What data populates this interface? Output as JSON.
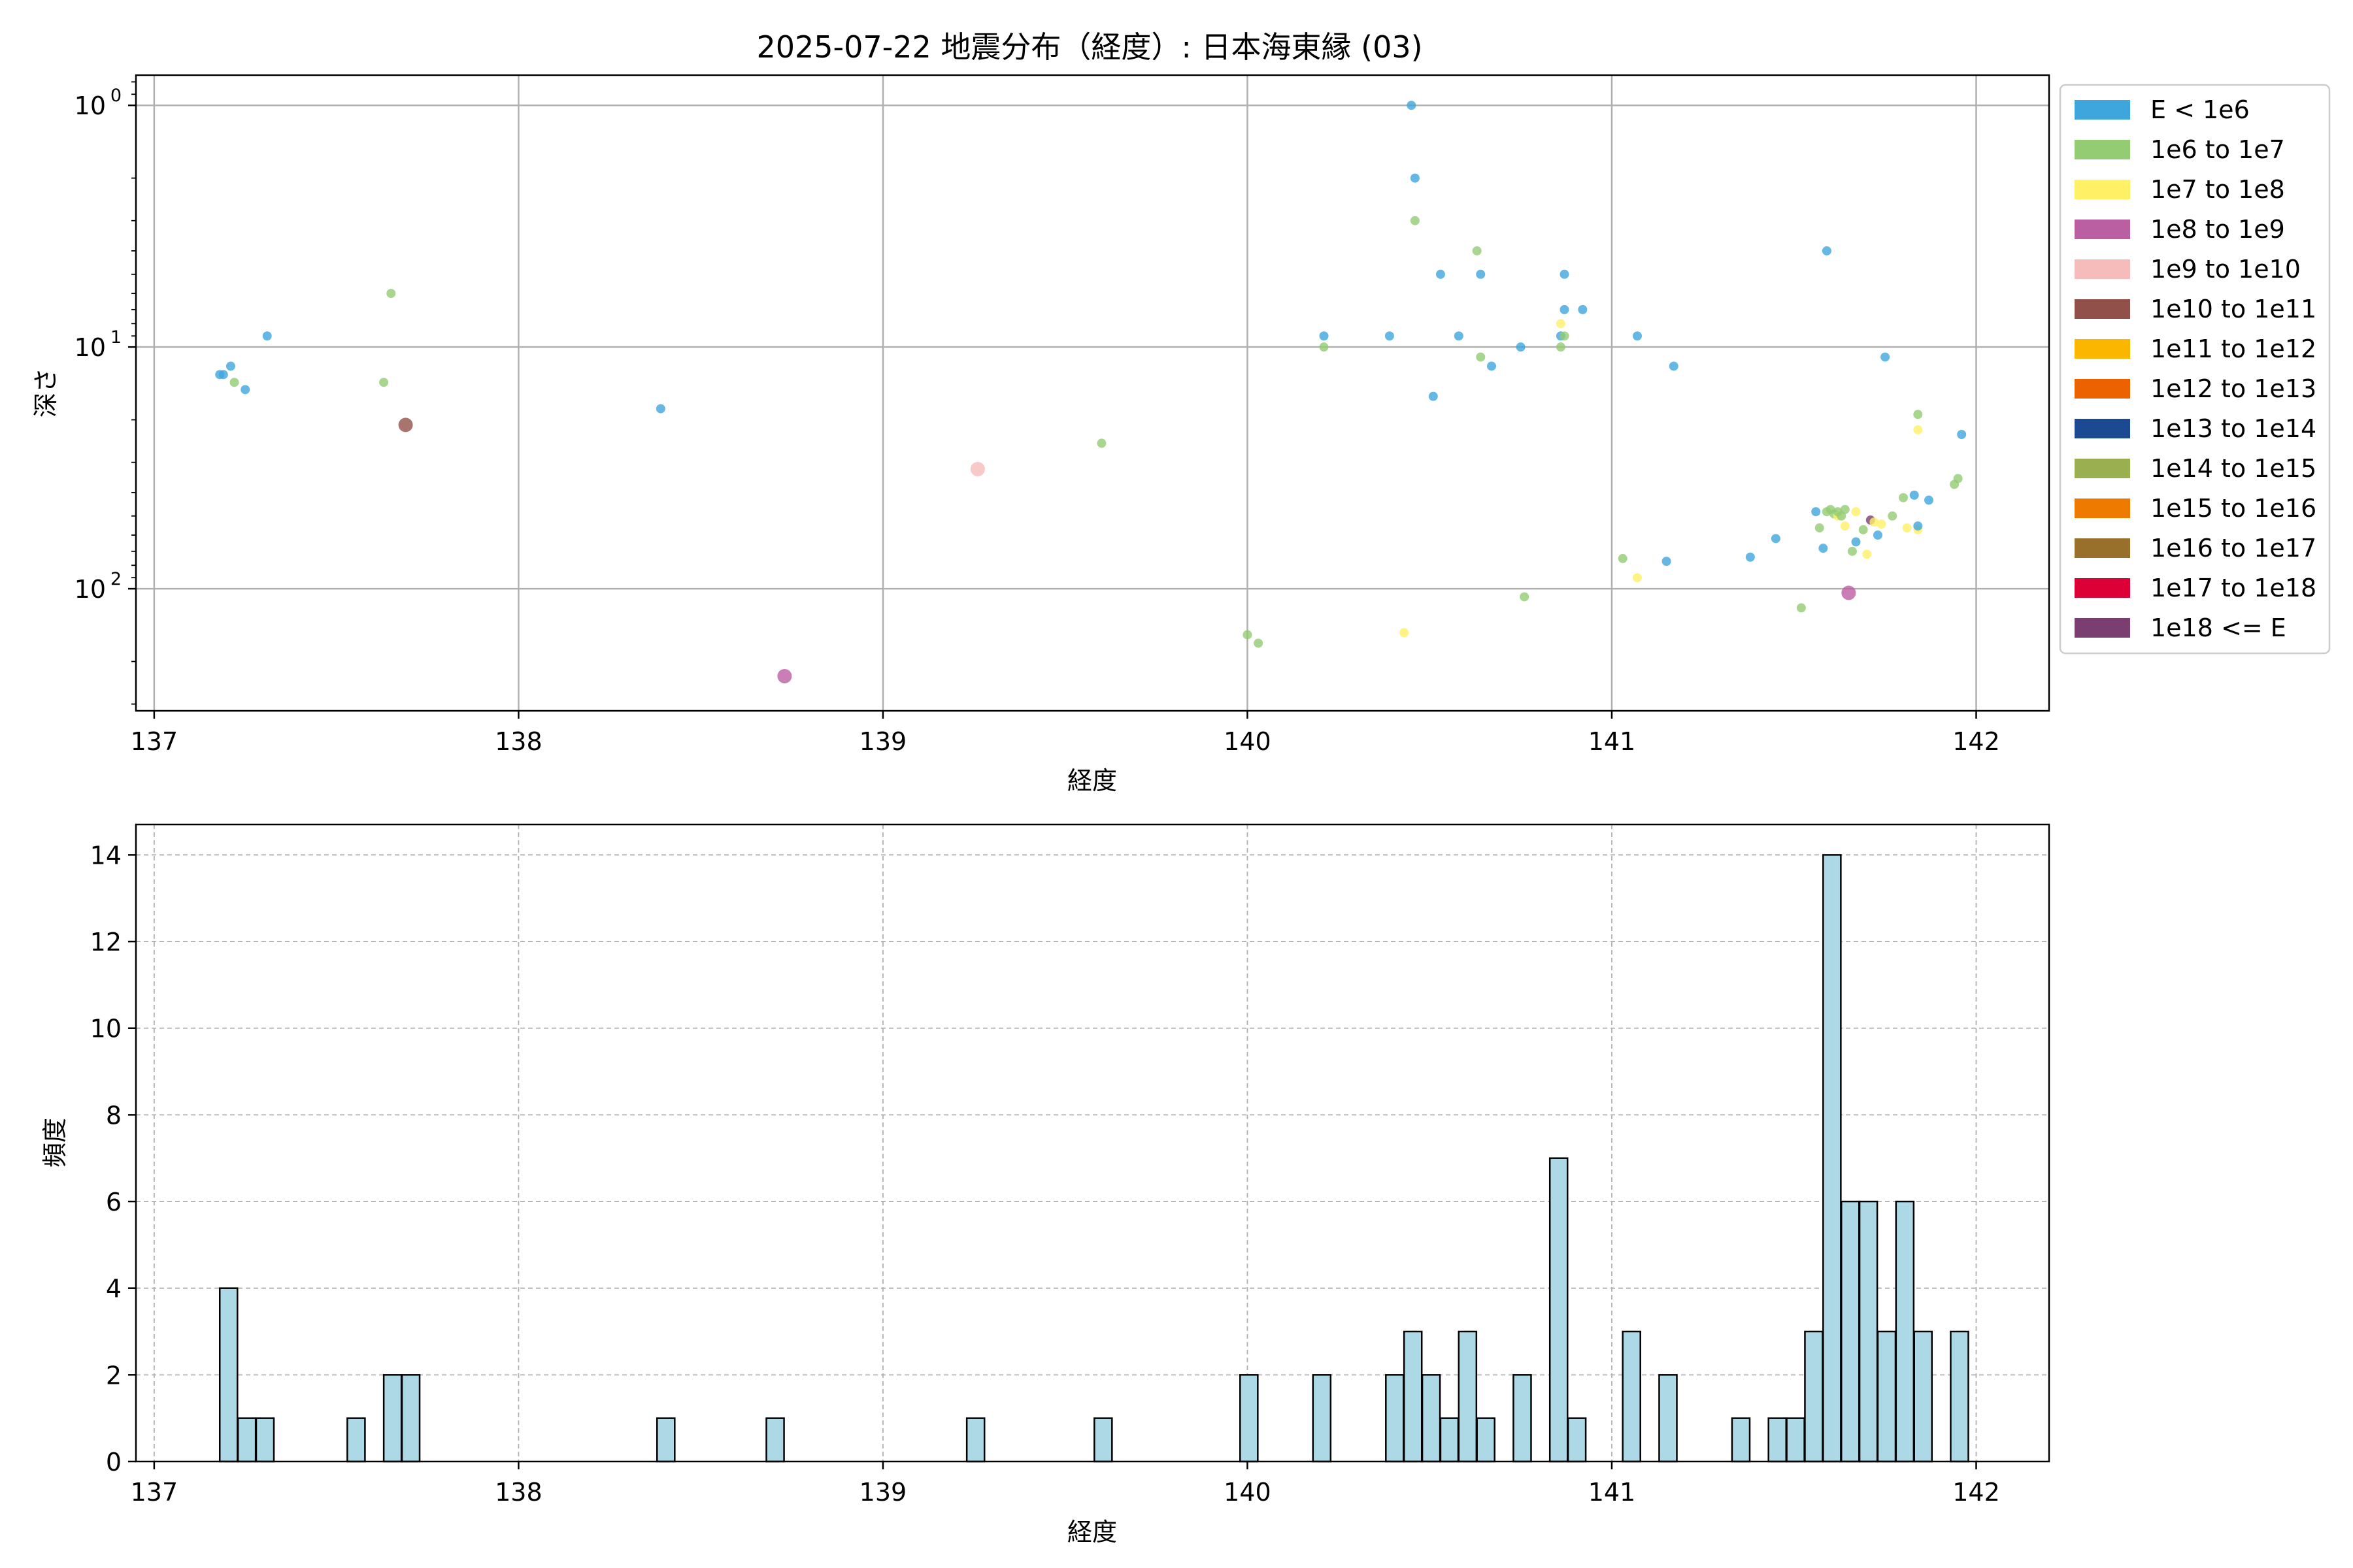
{
  "title": "2025-07-22 地震分布（経度）: 日本海東縁 (03)",
  "scatter": {
    "type": "scatter",
    "xlabel": "経度",
    "ylabel": "深さ",
    "xlim": [
      136.95,
      142.2
    ],
    "ylim": [
      320,
      0.75
    ],
    "yscale": "log",
    "inverted_y": true,
    "grid": true,
    "xticks": [
      137,
      138,
      139,
      140,
      141,
      142
    ],
    "xtick_labels": [
      "137",
      "138",
      "139",
      "140",
      "141",
      "142"
    ],
    "yticks": [
      1,
      10,
      100
    ],
    "ytick_exponents": [
      "0",
      "1",
      "2"
    ],
    "legend_position": "outside-right",
    "legend": [
      {
        "label": "E < 1e6",
        "color": "#3ea5dd"
      },
      {
        "label": "1e6 to 1e7",
        "color": "#93cc73"
      },
      {
        "label": "1e7 to 1e8",
        "color": "#fff066"
      },
      {
        "label": "1e8 to 1e9",
        "color": "#bb5fa3"
      },
      {
        "label": "1e9 to 1e10",
        "color": "#f6bcbb"
      },
      {
        "label": "1e10 to 1e11",
        "color": "#91514a"
      },
      {
        "label": "1e11 to 1e12",
        "color": "#fbb600"
      },
      {
        "label": "1e12 to 1e13",
        "color": "#ec6200"
      },
      {
        "label": "1e13 to 1e14",
        "color": "#1c4a92"
      },
      {
        "label": "1e14 to 1e15",
        "color": "#9ab050"
      },
      {
        "label": "1e15 to 1e16",
        "color": "#ee7b00"
      },
      {
        "label": "1e16 to 1e17",
        "color": "#98702c"
      },
      {
        "label": "1e17 to 1e18",
        "color": "#dc0037"
      },
      {
        "label": "1e18 <= E",
        "color": "#7a3f70"
      }
    ],
    "points": [
      {
        "x": 137.18,
        "y": 13,
        "c": 0
      },
      {
        "x": 137.19,
        "y": 13,
        "c": 0
      },
      {
        "x": 137.21,
        "y": 12,
        "c": 0
      },
      {
        "x": 137.22,
        "y": 14,
        "c": 1
      },
      {
        "x": 137.25,
        "y": 15,
        "c": 0
      },
      {
        "x": 137.31,
        "y": 9,
        "c": 0
      },
      {
        "x": 137.63,
        "y": 14,
        "c": 1
      },
      {
        "x": 137.65,
        "y": 6,
        "c": 1
      },
      {
        "x": 137.69,
        "y": 21,
        "c": 5
      },
      {
        "x": 138.39,
        "y": 18,
        "c": 0
      },
      {
        "x": 138.73,
        "y": 230,
        "c": 3
      },
      {
        "x": 139.26,
        "y": 32,
        "c": 4
      },
      {
        "x": 139.6,
        "y": 25,
        "c": 1
      },
      {
        "x": 140.0,
        "y": 155,
        "c": 1
      },
      {
        "x": 140.03,
        "y": 168,
        "c": 1
      },
      {
        "x": 140.21,
        "y": 9,
        "c": 0
      },
      {
        "x": 140.21,
        "y": 10,
        "c": 1
      },
      {
        "x": 140.39,
        "y": 9,
        "c": 0
      },
      {
        "x": 140.43,
        "y": 152,
        "c": 2
      },
      {
        "x": 140.45,
        "y": 1.0,
        "c": 0
      },
      {
        "x": 140.46,
        "y": 2.0,
        "c": 0
      },
      {
        "x": 140.46,
        "y": 3.0,
        "c": 1
      },
      {
        "x": 140.51,
        "y": 16,
        "c": 0
      },
      {
        "x": 140.53,
        "y": 5,
        "c": 0
      },
      {
        "x": 140.58,
        "y": 9,
        "c": 0
      },
      {
        "x": 140.63,
        "y": 4,
        "c": 1
      },
      {
        "x": 140.64,
        "y": 5,
        "c": 0
      },
      {
        "x": 140.64,
        "y": 11,
        "c": 1
      },
      {
        "x": 140.67,
        "y": 12,
        "c": 0
      },
      {
        "x": 140.75,
        "y": 10,
        "c": 0
      },
      {
        "x": 140.76,
        "y": 108,
        "c": 1
      },
      {
        "x": 140.86,
        "y": 8,
        "c": 2
      },
      {
        "x": 140.86,
        "y": 9,
        "c": 0
      },
      {
        "x": 140.86,
        "y": 10,
        "c": 1
      },
      {
        "x": 140.87,
        "y": 9,
        "c": 1
      },
      {
        "x": 140.87,
        "y": 7,
        "c": 0
      },
      {
        "x": 140.87,
        "y": 5,
        "c": 0
      },
      {
        "x": 140.92,
        "y": 7,
        "c": 0
      },
      {
        "x": 141.03,
        "y": 75,
        "c": 1
      },
      {
        "x": 141.07,
        "y": 90,
        "c": 2
      },
      {
        "x": 141.07,
        "y": 9,
        "c": 0
      },
      {
        "x": 141.15,
        "y": 77,
        "c": 0
      },
      {
        "x": 141.17,
        "y": 12,
        "c": 0
      },
      {
        "x": 141.38,
        "y": 74,
        "c": 0
      },
      {
        "x": 141.45,
        "y": 62,
        "c": 0
      },
      {
        "x": 141.52,
        "y": 120,
        "c": 1
      },
      {
        "x": 141.56,
        "y": 48,
        "c": 0
      },
      {
        "x": 141.57,
        "y": 56,
        "c": 1
      },
      {
        "x": 141.58,
        "y": 68,
        "c": 0
      },
      {
        "x": 141.59,
        "y": 4,
        "c": 0
      },
      {
        "x": 141.59,
        "y": 48,
        "c": 1
      },
      {
        "x": 141.6,
        "y": 47,
        "c": 1
      },
      {
        "x": 141.61,
        "y": 49,
        "c": 1
      },
      {
        "x": 141.62,
        "y": 50,
        "c": 2
      },
      {
        "x": 141.62,
        "y": 48,
        "c": 1
      },
      {
        "x": 141.63,
        "y": 50,
        "c": 1
      },
      {
        "x": 141.64,
        "y": 47,
        "c": 1
      },
      {
        "x": 141.64,
        "y": 55,
        "c": 2
      },
      {
        "x": 141.65,
        "y": 104,
        "c": 3
      },
      {
        "x": 141.66,
        "y": 70,
        "c": 1
      },
      {
        "x": 141.67,
        "y": 48,
        "c": 2
      },
      {
        "x": 141.67,
        "y": 64,
        "c": 0
      },
      {
        "x": 141.69,
        "y": 57,
        "c": 1
      },
      {
        "x": 141.7,
        "y": 72,
        "c": 2
      },
      {
        "x": 141.71,
        "y": 52,
        "c": 13
      },
      {
        "x": 141.72,
        "y": 53,
        "c": 2
      },
      {
        "x": 141.73,
        "y": 60,
        "c": 0
      },
      {
        "x": 141.74,
        "y": 54,
        "c": 2
      },
      {
        "x": 141.75,
        "y": 11,
        "c": 0
      },
      {
        "x": 141.77,
        "y": 50,
        "c": 1
      },
      {
        "x": 141.8,
        "y": 42,
        "c": 1
      },
      {
        "x": 141.81,
        "y": 56,
        "c": 2
      },
      {
        "x": 141.83,
        "y": 41,
        "c": 0
      },
      {
        "x": 141.84,
        "y": 19,
        "c": 1
      },
      {
        "x": 141.84,
        "y": 22,
        "c": 2
      },
      {
        "x": 141.84,
        "y": 57,
        "c": 2
      },
      {
        "x": 141.84,
        "y": 55,
        "c": 0
      },
      {
        "x": 141.87,
        "y": 43,
        "c": 0
      },
      {
        "x": 141.94,
        "y": 37,
        "c": 1
      },
      {
        "x": 141.95,
        "y": 35,
        "c": 1
      },
      {
        "x": 141.96,
        "y": 23,
        "c": 0
      }
    ]
  },
  "histogram": {
    "type": "bar",
    "xlabel": "経度",
    "ylabel": "頻度",
    "xlim": [
      136.95,
      142.2
    ],
    "ylim": [
      0,
      14.7
    ],
    "grid": true,
    "bar_color": "#add8e6",
    "edge_color": "#000000",
    "bin_width": 0.0485,
    "xticks": [
      137,
      138,
      139,
      140,
      141,
      142
    ],
    "xtick_labels": [
      "137",
      "138",
      "139",
      "140",
      "141",
      "142"
    ],
    "yticks": [
      0,
      2,
      4,
      6,
      8,
      10,
      12,
      14
    ],
    "ytick_labels": [
      "0",
      "2",
      "4",
      "6",
      "8",
      "10",
      "12",
      "14"
    ],
    "bins": [
      {
        "x": 137.18,
        "v": 4
      },
      {
        "x": 137.23,
        "v": 1
      },
      {
        "x": 137.28,
        "v": 1
      },
      {
        "x": 137.53,
        "v": 1
      },
      {
        "x": 137.63,
        "v": 2
      },
      {
        "x": 137.68,
        "v": 2
      },
      {
        "x": 138.38,
        "v": 1
      },
      {
        "x": 138.68,
        "v": 1
      },
      {
        "x": 139.23,
        "v": 1
      },
      {
        "x": 139.58,
        "v": 1
      },
      {
        "x": 139.98,
        "v": 2
      },
      {
        "x": 140.18,
        "v": 2
      },
      {
        "x": 140.38,
        "v": 2
      },
      {
        "x": 140.43,
        "v": 3
      },
      {
        "x": 140.48,
        "v": 2
      },
      {
        "x": 140.53,
        "v": 1
      },
      {
        "x": 140.58,
        "v": 3
      },
      {
        "x": 140.63,
        "v": 1
      },
      {
        "x": 140.73,
        "v": 2
      },
      {
        "x": 140.83,
        "v": 7
      },
      {
        "x": 140.88,
        "v": 1
      },
      {
        "x": 141.03,
        "v": 3
      },
      {
        "x": 141.13,
        "v": 2
      },
      {
        "x": 141.33,
        "v": 1
      },
      {
        "x": 141.43,
        "v": 1
      },
      {
        "x": 141.48,
        "v": 1
      },
      {
        "x": 141.53,
        "v": 3
      },
      {
        "x": 141.58,
        "v": 14
      },
      {
        "x": 141.63,
        "v": 6
      },
      {
        "x": 141.68,
        "v": 6
      },
      {
        "x": 141.73,
        "v": 3
      },
      {
        "x": 141.78,
        "v": 6
      },
      {
        "x": 141.83,
        "v": 3
      },
      {
        "x": 141.93,
        "v": 3
      }
    ]
  }
}
